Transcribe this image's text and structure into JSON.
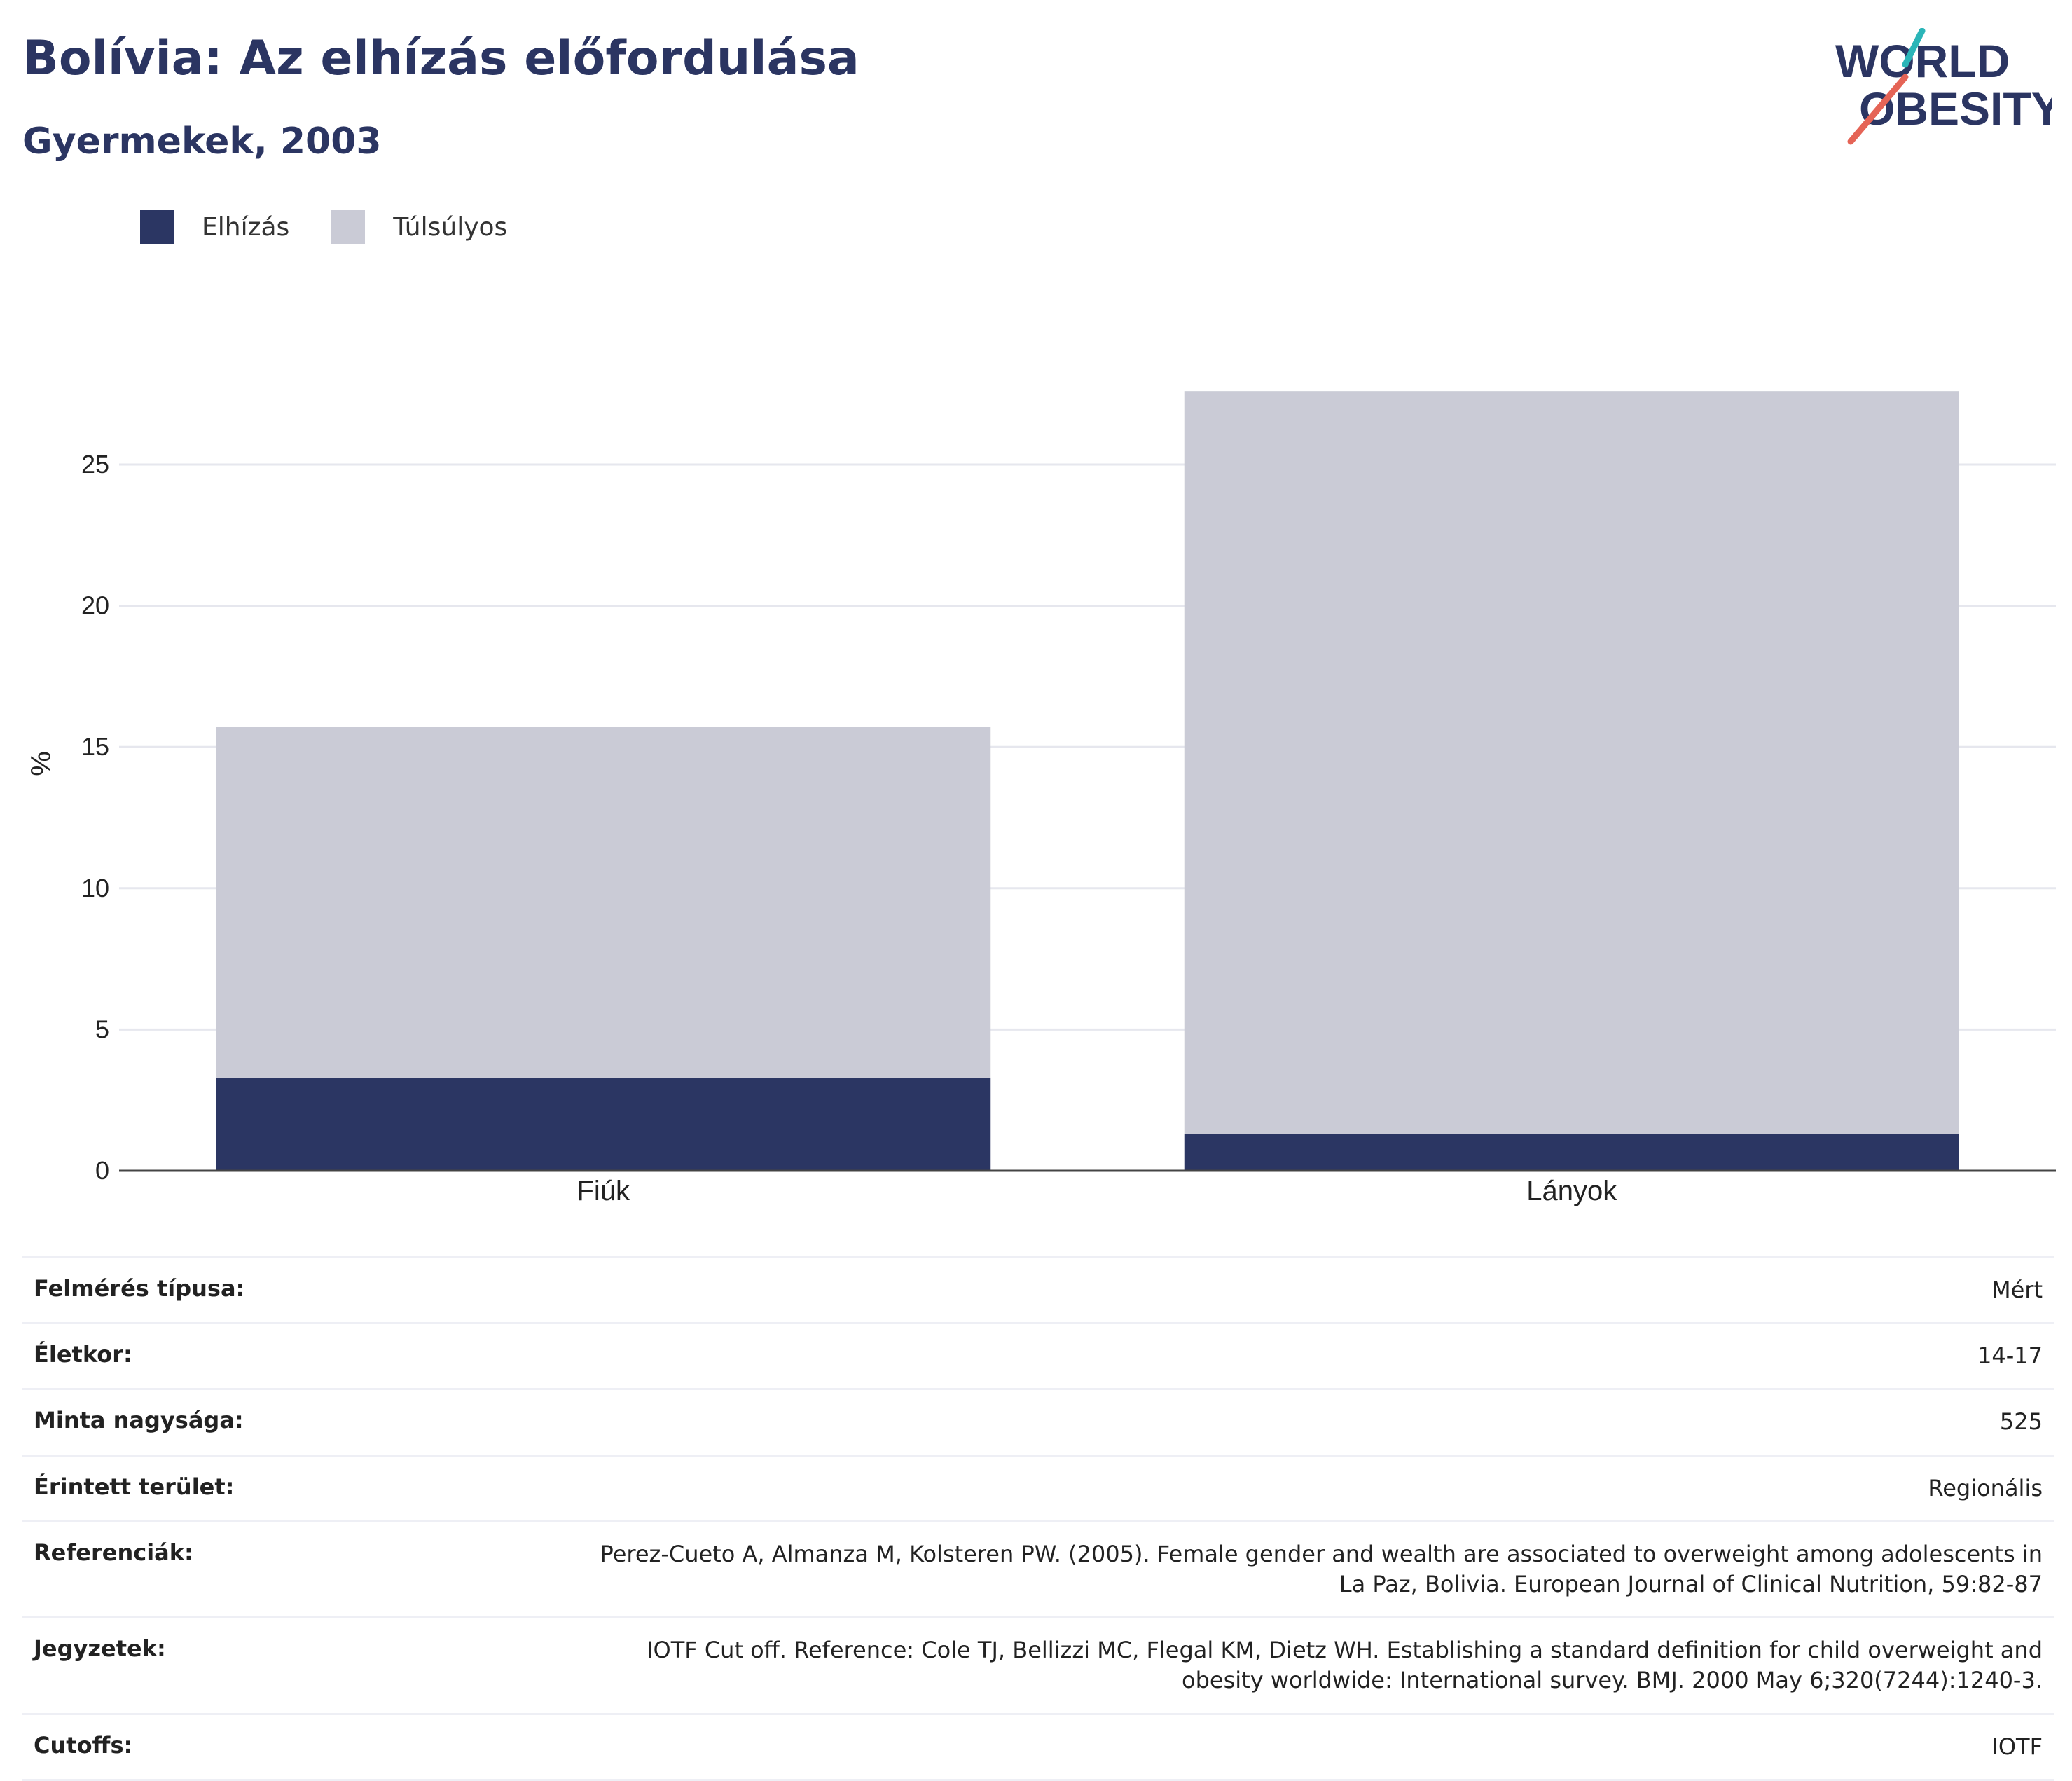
{
  "header": {
    "title": "Bolívia: Az elhízás előfordulása",
    "subtitle": "Gyermekek, 2003",
    "logo_line1": "WORLD",
    "logo_line2": "OBESITY"
  },
  "colors": {
    "obesity": "#2b3663",
    "overweight": "#cacbd6",
    "logo_text": "#2b3562",
    "logo_teal": "#2bb5b8",
    "logo_red": "#e56456"
  },
  "chart_data": {
    "type": "bar",
    "stacked": true,
    "categories": [
      "Fiúk",
      "Lányok"
    ],
    "series": [
      {
        "name": "Elhízás",
        "values": [
          3.3,
          1.3
        ]
      },
      {
        "name": "Túlsúlyos",
        "values": [
          12.4,
          26.3
        ]
      }
    ],
    "title": "Bolívia: Az elhízás előfordulása",
    "subtitle": "Gyermekek, 2003",
    "xlabel": "",
    "ylabel": "%",
    "ylim": [
      0,
      27.6
    ],
    "yticks": [
      0,
      5,
      10,
      15,
      20,
      25
    ],
    "grid": true,
    "legend_position": "top-left"
  },
  "details": [
    {
      "label": "Felmérés típusa:",
      "value": "Mért"
    },
    {
      "label": "Életkor:",
      "value": "14-17"
    },
    {
      "label": "Minta nagysága:",
      "value": "525"
    },
    {
      "label": "Érintett terület:",
      "value": "Regionális"
    },
    {
      "label": "Referenciák:",
      "value": "Perez-Cueto A, Almanza M, Kolsteren PW. (2005). Female gender and wealth are associated to overweight among adolescents in La Paz, Bolivia. European Journal of Clinical Nutrition, 59:82-87"
    },
    {
      "label": "Jegyzetek:",
      "value": "IOTF Cut off. Reference: Cole TJ, Bellizzi MC, Flegal KM, Dietz WH. Establishing a standard definition for child overweight and obesity worldwide: International survey. BMJ. 2000 May 6;320(7244):1240-3."
    },
    {
      "label": "Cutoffs:",
      "value": "IOTF"
    }
  ]
}
